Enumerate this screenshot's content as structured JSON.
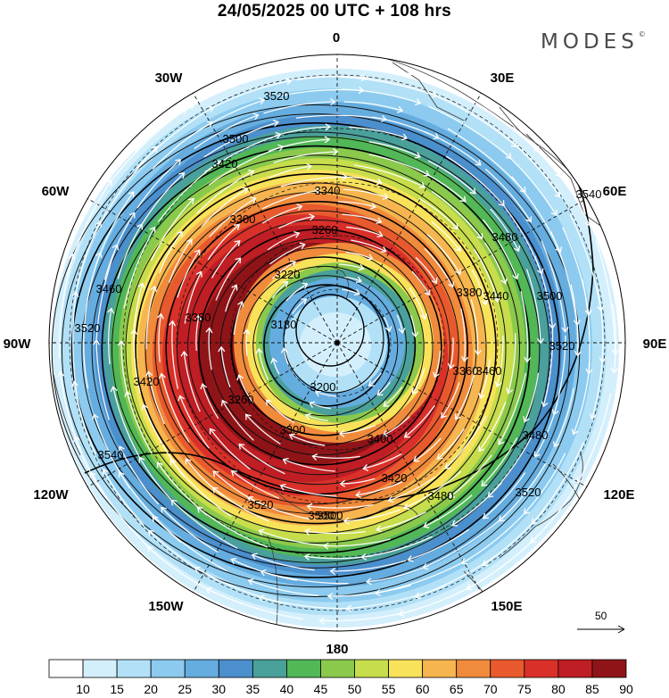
{
  "header": {
    "title": "24/05/2025  00 UTC  + 108 hrs",
    "brand": "MODES",
    "brand_mark": "©"
  },
  "map": {
    "projection": "south-polar-stereographic",
    "longitude_labels": [
      {
        "text": "0",
        "lon": 0
      },
      {
        "text": "30E",
        "lon": 30
      },
      {
        "text": "60E",
        "lon": 60
      },
      {
        "text": "90E",
        "lon": 90
      },
      {
        "text": "120E",
        "lon": 120
      },
      {
        "text": "150E",
        "lon": 150
      },
      {
        "text": "180",
        "lon": 180
      },
      {
        "text": "150W",
        "lon": -150
      },
      {
        "text": "120W",
        "lon": -120
      },
      {
        "text": "90W",
        "lon": -90
      },
      {
        "text": "60W",
        "lon": -60
      },
      {
        "text": "30W",
        "lon": -30
      }
    ],
    "contour_labels": [
      "3520",
      "3500",
      "3420",
      "3340",
      "3260",
      "3220",
      "3180",
      "3200",
      "3260",
      "3300",
      "3420",
      "3480",
      "3500",
      "3520",
      "3540",
      "3480",
      "3440",
      "3380",
      "3360",
      "3400",
      "3460",
      "3500",
      "3520",
      "3480",
      "3460",
      "3520",
      "3540",
      "3420",
      "3380",
      "3300",
      "3500",
      "3520"
    ],
    "wind_reference": {
      "value": "50",
      "unit_label": ""
    }
  },
  "colorbar": {
    "ticks": [
      "10",
      "15",
      "20",
      "25",
      "30",
      "35",
      "40",
      "45",
      "50",
      "55",
      "60",
      "65",
      "70",
      "75",
      "80",
      "85",
      "90"
    ],
    "colors": [
      "#ffffff",
      "#d4effc",
      "#b2e1f7",
      "#8ccbef",
      "#65acdf",
      "#4b8fcd",
      "#4aa09a",
      "#52b756",
      "#8bc94c",
      "#c7dd4b",
      "#f7e25a",
      "#f6b54e",
      "#f08b3c",
      "#e85a2d",
      "#d9302a",
      "#be1e24",
      "#8f1418"
    ]
  }
}
